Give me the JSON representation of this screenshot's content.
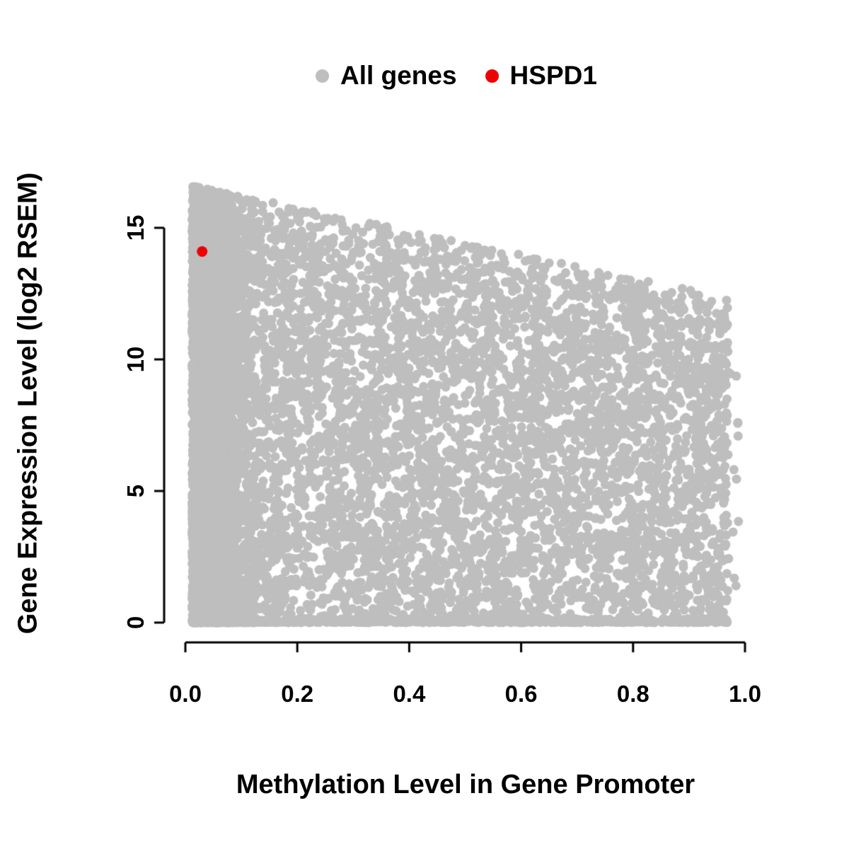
{
  "legend": {
    "items": [
      {
        "label": "All genes",
        "color": "#bebebe"
      },
      {
        "label": "HSPD1",
        "color": "#ee0000"
      }
    ]
  },
  "chart_data": {
    "type": "scatter",
    "title": "",
    "xlabel": "Methylation Level in Gene Promoter",
    "ylabel": "Gene Expression Level (log2 RSEM)",
    "xlim": [
      0.0,
      1.0
    ],
    "ylim": [
      0,
      16.8
    ],
    "x_ticks": [
      0.0,
      0.2,
      0.4,
      0.6,
      0.8,
      1.0
    ],
    "x_tick_labels": [
      "0.0",
      "0.2",
      "0.4",
      "0.6",
      "0.8",
      "1.0"
    ],
    "y_ticks": [
      0,
      5,
      10,
      15
    ],
    "y_tick_labels": [
      "0",
      "5",
      "10",
      "15"
    ],
    "grid": false,
    "legend_position": "top-center",
    "series": [
      {
        "name": "All genes",
        "color": "#bebebe",
        "marker": "filled-circle",
        "point_radius_px": 6.5,
        "representation": "procedural-cloud",
        "n_points": 11000,
        "seed": 42,
        "x_range": [
          0.012,
          0.97
        ],
        "upper_envelope_log2rsem": {
          "at_methylation_0": 16.65,
          "at_methylation_1": 12.2
        },
        "dense_mass_top": {
          "at_methylation_0": 15.8,
          "at_methylation_1": 11.6
        },
        "y_floor": 0,
        "left_column_fraction": 0.42,
        "left_column_sigma": 0.045,
        "zero_expression_fraction": 0.09
      },
      {
        "name": "HSPD1",
        "color": "#ee0000",
        "marker": "filled-circle",
        "point_radius_px": 7.5,
        "points": [
          [
            0.03,
            14.1
          ]
        ]
      }
    ]
  }
}
